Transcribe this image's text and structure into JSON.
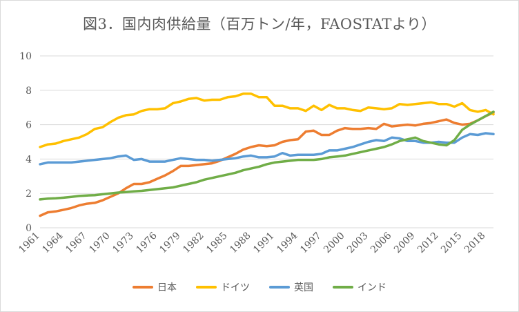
{
  "chart_data": {
    "type": "line",
    "title": "図3．国内肉供給量（百万トン/年，FAOSTATより）",
    "xlabel": "",
    "ylabel": "",
    "ylim": [
      0,
      10
    ],
    "yticks": [
      "0",
      "2",
      "4",
      "6",
      "8",
      "10"
    ],
    "grid": true,
    "legend_position": "bottom",
    "x": [
      1961,
      1962,
      1963,
      1964,
      1965,
      1966,
      1967,
      1968,
      1969,
      1970,
      1971,
      1972,
      1973,
      1974,
      1975,
      1976,
      1977,
      1978,
      1979,
      1980,
      1981,
      1982,
      1983,
      1984,
      1985,
      1986,
      1987,
      1988,
      1989,
      1990,
      1991,
      1992,
      1993,
      1994,
      1995,
      1996,
      1997,
      1998,
      1999,
      2000,
      2001,
      2002,
      2003,
      2004,
      2005,
      2006,
      2007,
      2008,
      2009,
      2010,
      2011,
      2012,
      2013,
      2014,
      2015,
      2016,
      2017,
      2018,
      2019
    ],
    "xtick_labels": [
      "1961",
      "1964",
      "1967",
      "1970",
      "1973",
      "1976",
      "1979",
      "1982",
      "1985",
      "1988",
      "1991",
      "1994",
      "1997",
      "2000",
      "2003",
      "2006",
      "2009",
      "2012",
      "2015",
      "2018"
    ],
    "series": [
      {
        "name": "日本",
        "color": "#ED7D31",
        "values": [
          0.7,
          0.9,
          0.95,
          1.05,
          1.15,
          1.3,
          1.4,
          1.45,
          1.6,
          1.8,
          2.0,
          2.3,
          2.55,
          2.55,
          2.65,
          2.85,
          3.05,
          3.3,
          3.6,
          3.6,
          3.65,
          3.7,
          3.75,
          3.9,
          4.1,
          4.3,
          4.55,
          4.7,
          4.8,
          4.75,
          4.8,
          5.0,
          5.1,
          5.15,
          5.6,
          5.65,
          5.4,
          5.4,
          5.65,
          5.8,
          5.75,
          5.75,
          5.8,
          5.75,
          6.05,
          5.9,
          5.95,
          6.0,
          5.95,
          6.05,
          6.1,
          6.2,
          6.3,
          6.1,
          6.0,
          6.05,
          6.25,
          6.5,
          6.7
        ]
      },
      {
        "name": "ドイツ",
        "color": "#FFC000",
        "values": [
          4.7,
          4.85,
          4.9,
          5.05,
          5.15,
          5.25,
          5.45,
          5.75,
          5.85,
          6.15,
          6.4,
          6.55,
          6.6,
          6.8,
          6.9,
          6.9,
          6.95,
          7.25,
          7.35,
          7.5,
          7.55,
          7.4,
          7.45,
          7.45,
          7.6,
          7.65,
          7.8,
          7.8,
          7.6,
          7.6,
          7.1,
          7.1,
          6.95,
          6.95,
          6.8,
          7.1,
          6.85,
          7.15,
          6.95,
          6.95,
          6.85,
          6.8,
          7.0,
          6.95,
          6.9,
          6.95,
          7.2,
          7.15,
          7.2,
          7.25,
          7.3,
          7.2,
          7.2,
          7.05,
          7.25,
          6.85,
          6.75,
          6.85,
          6.6
        ]
      },
      {
        "name": "英国",
        "color": "#5B9BD5",
        "values": [
          3.7,
          3.8,
          3.8,
          3.8,
          3.8,
          3.85,
          3.9,
          3.95,
          4.0,
          4.05,
          4.15,
          4.2,
          3.95,
          4.0,
          3.85,
          3.85,
          3.85,
          3.95,
          4.05,
          4.0,
          3.95,
          3.95,
          3.9,
          3.95,
          4.0,
          4.05,
          4.15,
          4.2,
          4.1,
          4.1,
          4.15,
          4.35,
          4.2,
          4.25,
          4.25,
          4.25,
          4.3,
          4.5,
          4.5,
          4.6,
          4.7,
          4.85,
          5.0,
          5.1,
          5.05,
          5.25,
          5.2,
          5.05,
          5.05,
          4.95,
          4.95,
          5.0,
          4.95,
          4.95,
          5.25,
          5.45,
          5.4,
          5.5,
          5.45
        ]
      },
      {
        "name": "インド",
        "color": "#70AD47",
        "values": [
          1.65,
          1.7,
          1.72,
          1.75,
          1.8,
          1.85,
          1.88,
          1.9,
          1.95,
          2.0,
          2.05,
          2.08,
          2.12,
          2.15,
          2.2,
          2.25,
          2.3,
          2.35,
          2.45,
          2.55,
          2.65,
          2.8,
          2.9,
          3.0,
          3.1,
          3.2,
          3.35,
          3.45,
          3.55,
          3.7,
          3.8,
          3.85,
          3.9,
          3.95,
          3.95,
          3.95,
          4.0,
          4.1,
          4.15,
          4.2,
          4.3,
          4.4,
          4.5,
          4.6,
          4.7,
          4.85,
          5.05,
          5.15,
          5.25,
          5.05,
          4.95,
          4.85,
          4.8,
          5.1,
          5.7,
          6.0,
          6.25,
          6.5,
          6.75
        ]
      }
    ]
  }
}
